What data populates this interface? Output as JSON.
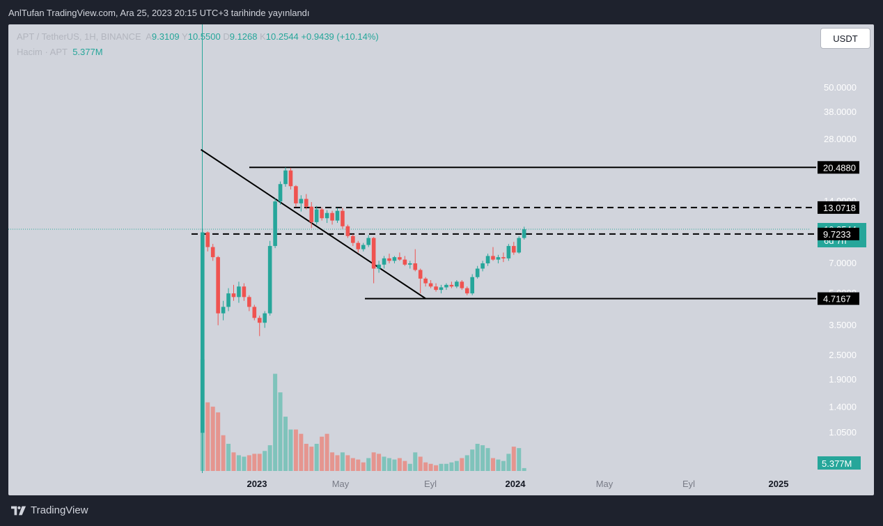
{
  "header": {
    "publish_line": "AnlTufan TradingView.com, Ara 25, 2023 20:15 UTC+3 tarihinde yayınlandı"
  },
  "legend": {
    "symbol": "APT / TetherUS, 1H, BINANCE",
    "o_label": "A",
    "o_value": "9.3109",
    "h_label": "Y",
    "h_value": "10.5500",
    "l_label": "D",
    "l_value": "9.1268",
    "c_label": "K",
    "c_value": "10.2544",
    "change": "+0.9439 (+10.14%)",
    "volume_label": "Hacim · APT",
    "volume_value": "5.377M"
  },
  "currency_button": "USDT",
  "footer": {
    "brand": "TradingView"
  },
  "colors": {
    "up": "#26a69a",
    "down": "#ef5350",
    "vol_up": "#7fc3bb",
    "vol_down": "#e5958f",
    "panel": "#d1d4dc",
    "bg": "#1e222d"
  },
  "chart_data": {
    "type": "candlestick",
    "scale": "log",
    "yticks": [
      "50.0000",
      "38.0000",
      "28.0000",
      "20.4880",
      "14.0000",
      "13.0718",
      "10.2544",
      "9.7233",
      "7.0000",
      "5.0000",
      "4.7167",
      "3.5000",
      "2.5000",
      "1.9000",
      "1.4000",
      "1.0500",
      "5.377M"
    ],
    "xticks": [
      "2023",
      "May",
      "Eyl",
      "2024",
      "May",
      "Eyl",
      "2025"
    ],
    "price_labels": [
      {
        "value": 20.488,
        "text": "20.4880",
        "style": "black"
      },
      {
        "value": 13.0718,
        "text": "13.0718",
        "style": "black"
      },
      {
        "value": 10.2544,
        "text": "10.2544",
        "sub": "6d 7h",
        "style": "green"
      },
      {
        "value": 9.7233,
        "text": "9.7233",
        "style": "black"
      },
      {
        "value": 4.7167,
        "text": "4.7167",
        "style": "black"
      }
    ],
    "volume_label": "5.377M",
    "lines": {
      "solid_horizontals": [
        20.488,
        4.7167
      ],
      "dashed_horizontals": [
        13.0718,
        9.7233
      ],
      "trendline": {
        "from": {
          "t": -0.3,
          "price": 25.0
        },
        "to": {
          "t": 43.0,
          "price": 4.72
        }
      }
    },
    "candles": [
      {
        "o": 1.05,
        "h": 10.2,
        "l": 1.05,
        "c": 9.9
      },
      {
        "o": 9.9,
        "h": 10.0,
        "l": 8.0,
        "c": 8.4
      },
      {
        "o": 8.4,
        "h": 8.7,
        "l": 7.2,
        "c": 7.5
      },
      {
        "o": 7.5,
        "h": 7.6,
        "l": 3.5,
        "c": 4.0
      },
      {
        "o": 4.0,
        "h": 4.6,
        "l": 3.7,
        "c": 4.3
      },
      {
        "o": 4.3,
        "h": 5.3,
        "l": 4.1,
        "c": 5.0
      },
      {
        "o": 5.0,
        "h": 5.5,
        "l": 4.6,
        "c": 4.8
      },
      {
        "o": 4.8,
        "h": 5.7,
        "l": 4.5,
        "c": 5.4
      },
      {
        "o": 5.4,
        "h": 5.6,
        "l": 4.6,
        "c": 4.8
      },
      {
        "o": 4.8,
        "h": 4.9,
        "l": 4.1,
        "c": 4.3
      },
      {
        "o": 4.3,
        "h": 4.4,
        "l": 3.7,
        "c": 3.8
      },
      {
        "o": 3.8,
        "h": 3.9,
        "l": 3.1,
        "c": 3.6
      },
      {
        "o": 3.6,
        "h": 4.1,
        "l": 3.4,
        "c": 4.0
      },
      {
        "o": 4.0,
        "h": 9.0,
        "l": 3.9,
        "c": 8.5
      },
      {
        "o": 8.5,
        "h": 14.5,
        "l": 8.3,
        "c": 14.0
      },
      {
        "o": 14.0,
        "h": 17.5,
        "l": 13.5,
        "c": 17.0
      },
      {
        "o": 17.0,
        "h": 20.5,
        "l": 16.5,
        "c": 19.8
      },
      {
        "o": 19.8,
        "h": 20.4,
        "l": 16.0,
        "c": 16.6
      },
      {
        "o": 16.6,
        "h": 16.8,
        "l": 13.2,
        "c": 13.7
      },
      {
        "o": 13.7,
        "h": 15.0,
        "l": 12.5,
        "c": 14.4
      },
      {
        "o": 14.4,
        "h": 15.2,
        "l": 12.8,
        "c": 13.2
      },
      {
        "o": 13.2,
        "h": 13.9,
        "l": 10.4,
        "c": 11.1
      },
      {
        "o": 11.1,
        "h": 13.3,
        "l": 10.8,
        "c": 12.8
      },
      {
        "o": 12.8,
        "h": 13.1,
        "l": 11.3,
        "c": 11.6
      },
      {
        "o": 11.6,
        "h": 12.7,
        "l": 11.0,
        "c": 12.3
      },
      {
        "o": 12.3,
        "h": 12.6,
        "l": 10.8,
        "c": 11.3
      },
      {
        "o": 11.3,
        "h": 13.0,
        "l": 11.0,
        "c": 12.6
      },
      {
        "o": 12.6,
        "h": 13.0,
        "l": 10.3,
        "c": 10.6
      },
      {
        "o": 10.6,
        "h": 10.8,
        "l": 9.3,
        "c": 9.5
      },
      {
        "o": 9.5,
        "h": 9.7,
        "l": 8.5,
        "c": 8.8
      },
      {
        "o": 8.8,
        "h": 9.0,
        "l": 7.9,
        "c": 8.2
      },
      {
        "o": 8.2,
        "h": 8.8,
        "l": 8.0,
        "c": 8.6
      },
      {
        "o": 8.6,
        "h": 9.6,
        "l": 8.4,
        "c": 9.3
      },
      {
        "o": 9.3,
        "h": 9.4,
        "l": 5.6,
        "c": 6.6
      },
      {
        "o": 6.6,
        "h": 7.2,
        "l": 6.3,
        "c": 6.9
      },
      {
        "o": 6.9,
        "h": 7.6,
        "l": 6.6,
        "c": 7.4
      },
      {
        "o": 7.4,
        "h": 7.8,
        "l": 7.0,
        "c": 7.2
      },
      {
        "o": 7.2,
        "h": 7.6,
        "l": 7.0,
        "c": 7.5
      },
      {
        "o": 7.5,
        "h": 7.9,
        "l": 7.2,
        "c": 7.3
      },
      {
        "o": 7.3,
        "h": 7.6,
        "l": 6.8,
        "c": 6.9
      },
      {
        "o": 6.9,
        "h": 7.2,
        "l": 6.6,
        "c": 7.0
      },
      {
        "o": 7.0,
        "h": 8.2,
        "l": 6.4,
        "c": 6.5
      },
      {
        "o": 6.5,
        "h": 6.6,
        "l": 5.0,
        "c": 5.9
      },
      {
        "o": 5.9,
        "h": 6.0,
        "l": 5.4,
        "c": 5.6
      },
      {
        "o": 5.6,
        "h": 5.8,
        "l": 5.3,
        "c": 5.4
      },
      {
        "o": 5.4,
        "h": 5.6,
        "l": 5.1,
        "c": 5.2
      },
      {
        "o": 5.2,
        "h": 5.5,
        "l": 5.0,
        "c": 5.35
      },
      {
        "o": 5.35,
        "h": 5.6,
        "l": 5.2,
        "c": 5.5
      },
      {
        "o": 5.5,
        "h": 5.7,
        "l": 5.3,
        "c": 5.4
      },
      {
        "o": 5.4,
        "h": 5.8,
        "l": 5.3,
        "c": 5.7
      },
      {
        "o": 5.7,
        "h": 5.8,
        "l": 5.2,
        "c": 5.3
      },
      {
        "o": 5.3,
        "h": 5.4,
        "l": 4.9,
        "c": 5.0
      },
      {
        "o": 5.0,
        "h": 6.2,
        "l": 4.9,
        "c": 6.0
      },
      {
        "o": 6.0,
        "h": 6.8,
        "l": 5.9,
        "c": 6.6
      },
      {
        "o": 6.6,
        "h": 7.2,
        "l": 6.4,
        "c": 7.0
      },
      {
        "o": 7.0,
        "h": 7.8,
        "l": 6.8,
        "c": 7.6
      },
      {
        "o": 7.6,
        "h": 8.4,
        "l": 7.2,
        "c": 7.3
      },
      {
        "o": 7.3,
        "h": 7.7,
        "l": 7.0,
        "c": 7.5
      },
      {
        "o": 7.5,
        "h": 7.9,
        "l": 7.1,
        "c": 7.4
      },
      {
        "o": 7.4,
        "h": 8.7,
        "l": 7.2,
        "c": 8.5
      },
      {
        "o": 8.5,
        "h": 8.9,
        "l": 7.7,
        "c": 7.9
      },
      {
        "o": 7.9,
        "h": 9.5,
        "l": 7.8,
        "c": 9.3
      },
      {
        "o": 9.3,
        "h": 10.55,
        "l": 9.13,
        "c": 10.25
      }
    ],
    "volumes": [
      {
        "v": 0.78,
        "up": true
      },
      {
        "v": 0.48,
        "up": false
      },
      {
        "v": 0.45,
        "up": false
      },
      {
        "v": 0.41,
        "up": false
      },
      {
        "v": 0.25,
        "up": false
      },
      {
        "v": 0.19,
        "up": true
      },
      {
        "v": 0.13,
        "up": false
      },
      {
        "v": 0.11,
        "up": true
      },
      {
        "v": 0.1,
        "up": true
      },
      {
        "v": 0.11,
        "up": false
      },
      {
        "v": 0.12,
        "up": false
      },
      {
        "v": 0.12,
        "up": false
      },
      {
        "v": 0.14,
        "up": true
      },
      {
        "v": 0.18,
        "up": true
      },
      {
        "v": 0.68,
        "up": true
      },
      {
        "v": 0.55,
        "up": true
      },
      {
        "v": 0.38,
        "up": true
      },
      {
        "v": 0.29,
        "up": true
      },
      {
        "v": 0.29,
        "up": false
      },
      {
        "v": 0.26,
        "up": false
      },
      {
        "v": 0.19,
        "up": false
      },
      {
        "v": 0.17,
        "up": false
      },
      {
        "v": 0.19,
        "up": true
      },
      {
        "v": 0.24,
        "up": false
      },
      {
        "v": 0.26,
        "up": false
      },
      {
        "v": 0.13,
        "up": false
      },
      {
        "v": 0.11,
        "up": false
      },
      {
        "v": 0.13,
        "up": true
      },
      {
        "v": 0.11,
        "up": false
      },
      {
        "v": 0.09,
        "up": false
      },
      {
        "v": 0.08,
        "up": false
      },
      {
        "v": 0.06,
        "up": false
      },
      {
        "v": 0.09,
        "up": true
      },
      {
        "v": 0.13,
        "up": false
      },
      {
        "v": 0.12,
        "up": false
      },
      {
        "v": 0.1,
        "up": true
      },
      {
        "v": 0.09,
        "up": true
      },
      {
        "v": 0.08,
        "up": true
      },
      {
        "v": 0.09,
        "up": false
      },
      {
        "v": 0.07,
        "up": false
      },
      {
        "v": 0.05,
        "up": true
      },
      {
        "v": 0.13,
        "up": true
      },
      {
        "v": 0.1,
        "up": false
      },
      {
        "v": 0.06,
        "up": false
      },
      {
        "v": 0.05,
        "up": false
      },
      {
        "v": 0.04,
        "up": false
      },
      {
        "v": 0.05,
        "up": true
      },
      {
        "v": 0.05,
        "up": true
      },
      {
        "v": 0.06,
        "up": true
      },
      {
        "v": 0.07,
        "up": true
      },
      {
        "v": 0.09,
        "up": false
      },
      {
        "v": 0.11,
        "up": true
      },
      {
        "v": 0.15,
        "up": true
      },
      {
        "v": 0.19,
        "up": true
      },
      {
        "v": 0.18,
        "up": true
      },
      {
        "v": 0.16,
        "up": true
      },
      {
        "v": 0.09,
        "up": false
      },
      {
        "v": 0.08,
        "up": true
      },
      {
        "v": 0.07,
        "up": true
      },
      {
        "v": 0.12,
        "up": true
      },
      {
        "v": 0.17,
        "up": false
      },
      {
        "v": 0.16,
        "up": true
      },
      {
        "v": 0.02,
        "up": true
      }
    ]
  }
}
